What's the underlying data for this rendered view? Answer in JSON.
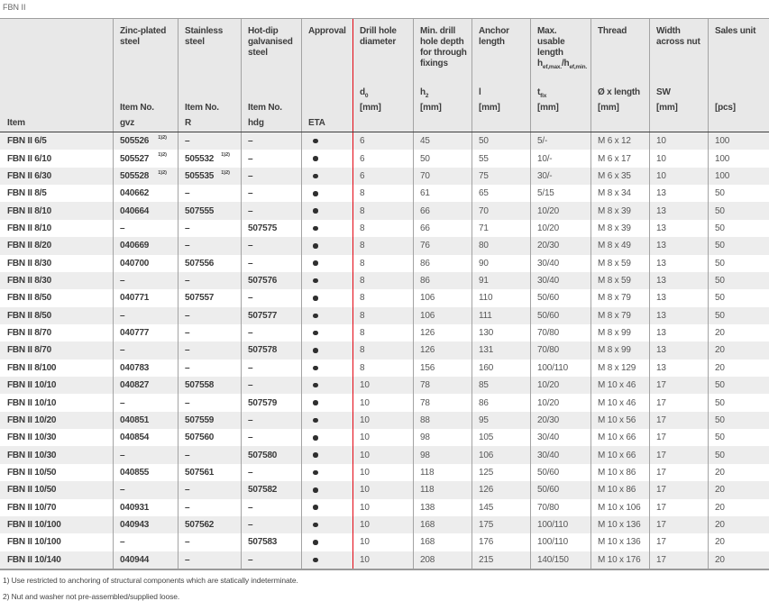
{
  "page_title": "FBN II",
  "accent_red": "#e30613",
  "approval_dot_icon": "filled-circle",
  "table": {
    "columns": [
      {
        "id": "item",
        "title": "",
        "symbol": "",
        "unit": "",
        "bottom": "Item"
      },
      {
        "id": "gvz",
        "title": "Zinc-plated steel",
        "symbol": "",
        "unit": "Item No.",
        "bottom": "gvz"
      },
      {
        "id": "r",
        "title": "Stainless steel",
        "symbol": "",
        "unit": "Item No.",
        "bottom": "R"
      },
      {
        "id": "hdg",
        "title": "Hot-dip galvanised steel",
        "symbol": "",
        "unit": "Item No.",
        "bottom": "hdg"
      },
      {
        "id": "eta",
        "title": "Approval",
        "symbol": "",
        "unit": "",
        "bottom": "ETA"
      },
      {
        "id": "d0",
        "title": "Drill hole diameter",
        "symbol": "d_{0}",
        "unit": "[mm]",
        "bottom": ""
      },
      {
        "id": "h2",
        "title": "Min. drill hole depth for through fixings",
        "symbol": "h_{2}",
        "unit": "[mm]",
        "bottom": ""
      },
      {
        "id": "l",
        "title": "Anchor length",
        "symbol": "l",
        "unit": "[mm]",
        "bottom": ""
      },
      {
        "id": "tfix",
        "title": "Max. usable length h_{ef,max.}/h_{ef,min.}",
        "symbol": "t_{fix}",
        "unit": "[mm]",
        "bottom": ""
      },
      {
        "id": "thread",
        "title": "Thread",
        "symbol": "Ø x length",
        "unit": "[mm]",
        "bottom": ""
      },
      {
        "id": "sw",
        "title": "Width across nut",
        "symbol": "SW",
        "unit": "[mm]",
        "bottom": ""
      },
      {
        "id": "sales",
        "title": "Sales unit",
        "symbol": "",
        "unit": "[pcs]",
        "bottom": ""
      }
    ],
    "rows": [
      {
        "item": "FBN II 6/5",
        "gvz": "505526^{1)2)}",
        "r": "–",
        "hdg": "–",
        "eta": "dot",
        "d0": "6",
        "h2": "45",
        "l": "50",
        "tfix": "5/-",
        "thread": "M 6 x 12",
        "sw": "10",
        "sales": "100"
      },
      {
        "item": "FBN II 6/10",
        "gvz": "505527^{1)2)}",
        "r": "505532^{1)2)}",
        "hdg": "–",
        "eta": "dot",
        "d0": "6",
        "h2": "50",
        "l": "55",
        "tfix": "10/-",
        "thread": "M 6 x 17",
        "sw": "10",
        "sales": "100"
      },
      {
        "item": "FBN II 6/30",
        "gvz": "505528^{1)2)}",
        "r": "505535^{1)2)}",
        "hdg": "–",
        "eta": "dot",
        "d0": "6",
        "h2": "70",
        "l": "75",
        "tfix": "30/-",
        "thread": "M 6 x 35",
        "sw": "10",
        "sales": "100"
      },
      {
        "item": "FBN II 8/5",
        "gvz": "040662",
        "r": "–",
        "hdg": "–",
        "eta": "dot",
        "d0": "8",
        "h2": "61",
        "l": "65",
        "tfix": "5/15",
        "thread": "M 8 x 34",
        "sw": "13",
        "sales": "50"
      },
      {
        "item": "FBN II 8/10",
        "gvz": "040664",
        "r": "507555",
        "hdg": "–",
        "eta": "dot",
        "d0": "8",
        "h2": "66",
        "l": "70",
        "tfix": "10/20",
        "thread": "M 8 x 39",
        "sw": "13",
        "sales": "50"
      },
      {
        "item": "FBN II 8/10",
        "gvz": "–",
        "r": "–",
        "hdg": "507575",
        "eta": "dot",
        "d0": "8",
        "h2": "66",
        "l": "71",
        "tfix": "10/20",
        "thread": "M 8 x 39",
        "sw": "13",
        "sales": "50"
      },
      {
        "item": "FBN II 8/20",
        "gvz": "040669",
        "r": "–",
        "hdg": "–",
        "eta": "dot",
        "d0": "8",
        "h2": "76",
        "l": "80",
        "tfix": "20/30",
        "thread": "M 8 x 49",
        "sw": "13",
        "sales": "50"
      },
      {
        "item": "FBN II 8/30",
        "gvz": "040700",
        "r": "507556",
        "hdg": "–",
        "eta": "dot",
        "d0": "8",
        "h2": "86",
        "l": "90",
        "tfix": "30/40",
        "thread": "M 8 x 59",
        "sw": "13",
        "sales": "50"
      },
      {
        "item": "FBN II 8/30",
        "gvz": "–",
        "r": "–",
        "hdg": "507576",
        "eta": "dot",
        "d0": "8",
        "h2": "86",
        "l": "91",
        "tfix": "30/40",
        "thread": "M 8 x 59",
        "sw": "13",
        "sales": "50"
      },
      {
        "item": "FBN II 8/50",
        "gvz": "040771",
        "r": "507557",
        "hdg": "–",
        "eta": "dot",
        "d0": "8",
        "h2": "106",
        "l": "110",
        "tfix": "50/60",
        "thread": "M 8 x 79",
        "sw": "13",
        "sales": "50"
      },
      {
        "item": "FBN II 8/50",
        "gvz": "–",
        "r": "–",
        "hdg": "507577",
        "eta": "dot",
        "d0": "8",
        "h2": "106",
        "l": "111",
        "tfix": "50/60",
        "thread": "M 8 x 79",
        "sw": "13",
        "sales": "50"
      },
      {
        "item": "FBN II 8/70",
        "gvz": "040777",
        "r": "–",
        "hdg": "–",
        "eta": "dot",
        "d0": "8",
        "h2": "126",
        "l": "130",
        "tfix": "70/80",
        "thread": "M 8 x 99",
        "sw": "13",
        "sales": "20"
      },
      {
        "item": "FBN II 8/70",
        "gvz": "–",
        "r": "–",
        "hdg": "507578",
        "eta": "dot",
        "d0": "8",
        "h2": "126",
        "l": "131",
        "tfix": "70/80",
        "thread": "M 8 x 99",
        "sw": "13",
        "sales": "20"
      },
      {
        "item": "FBN II 8/100",
        "gvz": "040783",
        "r": "–",
        "hdg": "–",
        "eta": "dot",
        "d0": "8",
        "h2": "156",
        "l": "160",
        "tfix": "100/110",
        "thread": "M 8 x 129",
        "sw": "13",
        "sales": "20"
      },
      {
        "item": "FBN II 10/10",
        "gvz": "040827",
        "r": "507558",
        "hdg": "–",
        "eta": "dot",
        "d0": "10",
        "h2": "78",
        "l": "85",
        "tfix": "10/20",
        "thread": "M 10 x 46",
        "sw": "17",
        "sales": "50"
      },
      {
        "item": "FBN II 10/10",
        "gvz": "–",
        "r": "–",
        "hdg": "507579",
        "eta": "dot",
        "d0": "10",
        "h2": "78",
        "l": "86",
        "tfix": "10/20",
        "thread": "M 10 x 46",
        "sw": "17",
        "sales": "50"
      },
      {
        "item": "FBN II 10/20",
        "gvz": "040851",
        "r": "507559",
        "hdg": "–",
        "eta": "dot",
        "d0": "10",
        "h2": "88",
        "l": "95",
        "tfix": "20/30",
        "thread": "M 10 x 56",
        "sw": "17",
        "sales": "50"
      },
      {
        "item": "FBN II 10/30",
        "gvz": "040854",
        "r": "507560",
        "hdg": "–",
        "eta": "dot",
        "d0": "10",
        "h2": "98",
        "l": "105",
        "tfix": "30/40",
        "thread": "M 10 x 66",
        "sw": "17",
        "sales": "50"
      },
      {
        "item": "FBN II 10/30",
        "gvz": "–",
        "r": "–",
        "hdg": "507580",
        "eta": "dot",
        "d0": "10",
        "h2": "98",
        "l": "106",
        "tfix": "30/40",
        "thread": "M 10 x 66",
        "sw": "17",
        "sales": "50"
      },
      {
        "item": "FBN II 10/50",
        "gvz": "040855",
        "r": "507561",
        "hdg": "–",
        "eta": "dot",
        "d0": "10",
        "h2": "118",
        "l": "125",
        "tfix": "50/60",
        "thread": "M 10 x 86",
        "sw": "17",
        "sales": "20"
      },
      {
        "item": "FBN II 10/50",
        "gvz": "–",
        "r": "–",
        "hdg": "507582",
        "eta": "dot",
        "d0": "10",
        "h2": "118",
        "l": "126",
        "tfix": "50/60",
        "thread": "M 10 x 86",
        "sw": "17",
        "sales": "20"
      },
      {
        "item": "FBN II 10/70",
        "gvz": "040931",
        "r": "–",
        "hdg": "–",
        "eta": "dot",
        "d0": "10",
        "h2": "138",
        "l": "145",
        "tfix": "70/80",
        "thread": "M 10 x 106",
        "sw": "17",
        "sales": "20"
      },
      {
        "item": "FBN II 10/100",
        "gvz": "040943",
        "r": "507562",
        "hdg": "–",
        "eta": "dot",
        "d0": "10",
        "h2": "168",
        "l": "175",
        "tfix": "100/110",
        "thread": "M 10 x 136",
        "sw": "17",
        "sales": "20"
      },
      {
        "item": "FBN II 10/100",
        "gvz": "–",
        "r": "–",
        "hdg": "507583",
        "eta": "dot",
        "d0": "10",
        "h2": "168",
        "l": "176",
        "tfix": "100/110",
        "thread": "M 10 x 136",
        "sw": "17",
        "sales": "20"
      },
      {
        "item": "FBN II 10/140",
        "gvz": "040944",
        "r": "–",
        "hdg": "–",
        "eta": "dot",
        "d0": "10",
        "h2": "208",
        "l": "215",
        "tfix": "140/150",
        "thread": "M 10 x 176",
        "sw": "17",
        "sales": "20"
      }
    ]
  },
  "footnotes": [
    "1) Use restricted to anchoring of structural components which are statically indeterminate.",
    "2) Nut and washer not pre-assembled/supplied loose."
  ]
}
